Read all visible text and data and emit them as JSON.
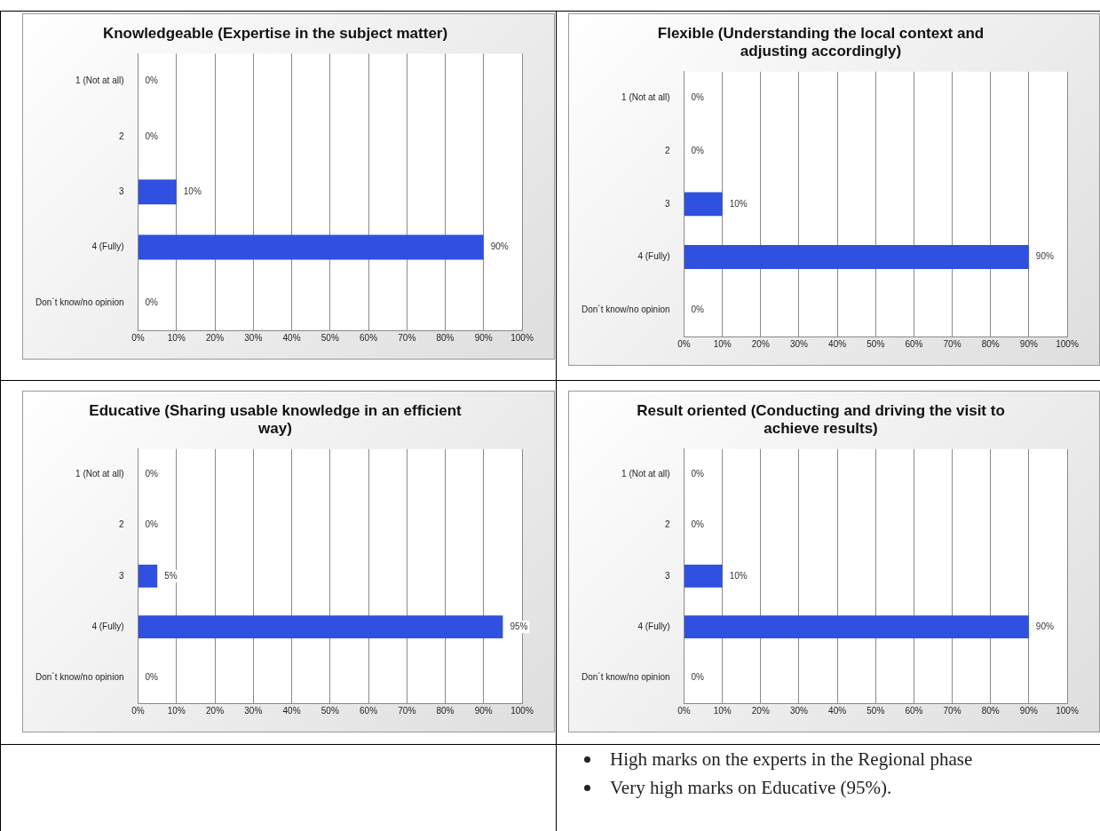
{
  "chart_data": [
    {
      "type": "bar",
      "orientation": "horizontal",
      "title": "Knowledgeable (Expertise in the subject matter)",
      "categories": [
        "1 (Not at all)",
        "2",
        "3",
        "4 (Fully)",
        "Don´t know/no opinion"
      ],
      "values": [
        0,
        0,
        10,
        90,
        0
      ],
      "value_labels": [
        "0%",
        "0%",
        "10%",
        "90%",
        "0%"
      ],
      "color": "#2f50e0",
      "xlim": [
        0,
        100
      ],
      "xticks": [
        {
          "value": 0,
          "label": "0%"
        },
        {
          "value": 10,
          "label": "10%"
        },
        {
          "value": 20,
          "label": "20%"
        },
        {
          "value": 30,
          "label": "30%"
        },
        {
          "value": 40,
          "label": "40%"
        },
        {
          "value": 50,
          "label": "50%"
        },
        {
          "value": 60,
          "label": "60%"
        },
        {
          "value": 70,
          "label": "70%"
        },
        {
          "value": 80,
          "label": "80%"
        },
        {
          "value": 90,
          "label": "90%"
        },
        {
          "value": 100,
          "label": "100%"
        }
      ],
      "grid": "x",
      "legend": false
    },
    {
      "type": "bar",
      "orientation": "horizontal",
      "title": "Flexible (Understanding the local context and adjusting accordingly)",
      "categories": [
        "1 (Not at all)",
        "2",
        "3",
        "4 (Fully)",
        "Don´t know/no opinion"
      ],
      "values": [
        0,
        0,
        10,
        90,
        0
      ],
      "value_labels": [
        "0%",
        "0%",
        "10%",
        "90%",
        "0%"
      ],
      "color": "#2f50e0",
      "xlim": [
        0,
        100
      ],
      "xticks": [
        {
          "value": 0,
          "label": "0%"
        },
        {
          "value": 10,
          "label": "10%"
        },
        {
          "value": 20,
          "label": "20%"
        },
        {
          "value": 30,
          "label": "30%"
        },
        {
          "value": 40,
          "label": "40%"
        },
        {
          "value": 50,
          "label": "50%"
        },
        {
          "value": 60,
          "label": "60%"
        },
        {
          "value": 70,
          "label": "70%"
        },
        {
          "value": 80,
          "label": "80%"
        },
        {
          "value": 90,
          "label": "90%"
        },
        {
          "value": 100,
          "label": "100%"
        }
      ],
      "grid": "x",
      "legend": false
    },
    {
      "type": "bar",
      "orientation": "horizontal",
      "title": "Educative (Sharing usable knowledge in an efficient way)",
      "categories": [
        "1 (Not at all)",
        "2",
        "3",
        "4 (Fully)",
        "Don´t know/no opinion"
      ],
      "values": [
        0,
        0,
        5,
        95,
        0
      ],
      "value_labels": [
        "0%",
        "0%",
        "5%",
        "95%",
        "0%"
      ],
      "color": "#2f50e0",
      "xlim": [
        0,
        100
      ],
      "xticks": [
        {
          "value": 0,
          "label": "0%"
        },
        {
          "value": 10,
          "label": "10%"
        },
        {
          "value": 20,
          "label": "20%"
        },
        {
          "value": 30,
          "label": "30%"
        },
        {
          "value": 40,
          "label": "40%"
        },
        {
          "value": 50,
          "label": "50%"
        },
        {
          "value": 60,
          "label": "60%"
        },
        {
          "value": 70,
          "label": "70%"
        },
        {
          "value": 80,
          "label": "80%"
        },
        {
          "value": 90,
          "label": "90%"
        },
        {
          "value": 100,
          "label": "100%"
        }
      ],
      "grid": "x",
      "legend": false
    },
    {
      "type": "bar",
      "orientation": "horizontal",
      "title": "Result oriented (Conducting and driving the visit to achieve results)",
      "categories": [
        "1 (Not at all)",
        "2",
        "3",
        "4 (Fully)",
        "Don´t know/no opinion"
      ],
      "values": [
        0,
        0,
        10,
        90,
        0
      ],
      "value_labels": [
        "0%",
        "0%",
        "10%",
        "90%",
        "0%"
      ],
      "color": "#2f50e0",
      "xlim": [
        0,
        100
      ],
      "xticks": [
        {
          "value": 0,
          "label": "0%"
        },
        {
          "value": 10,
          "label": "10%"
        },
        {
          "value": 20,
          "label": "20%"
        },
        {
          "value": 30,
          "label": "30%"
        },
        {
          "value": 40,
          "label": "40%"
        },
        {
          "value": 50,
          "label": "50%"
        },
        {
          "value": 60,
          "label": "60%"
        },
        {
          "value": 70,
          "label": "70%"
        },
        {
          "value": 80,
          "label": "80%"
        },
        {
          "value": 90,
          "label": "90%"
        },
        {
          "value": 100,
          "label": "100%"
        }
      ],
      "grid": "x",
      "legend": false
    },
    {
      "type": "other",
      "annotations": [
        "High marks on the experts in the Regional phase",
        "Very high marks on Educative (95%)."
      ]
    }
  ]
}
